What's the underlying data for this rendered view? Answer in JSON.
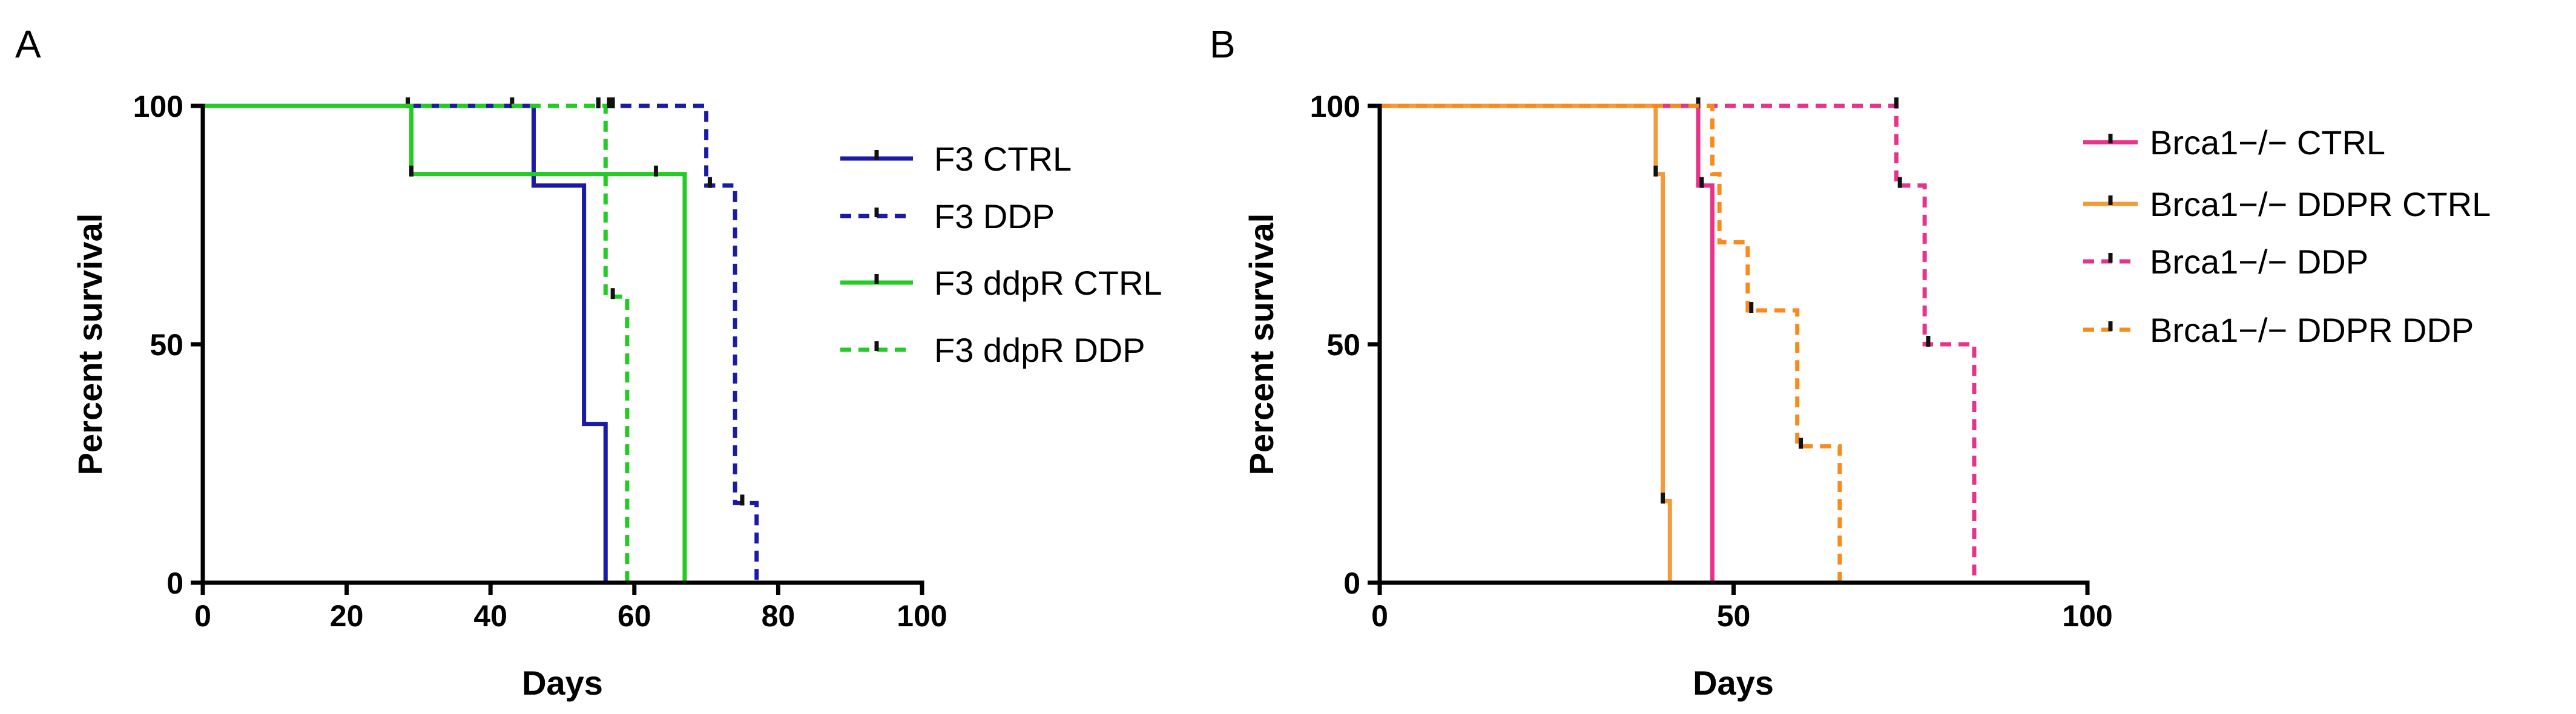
{
  "chart_data": [
    {
      "type": "line",
      "panel": "A",
      "xlabel": "Days",
      "ylabel": "Percent survival",
      "xlim": [
        0,
        100
      ],
      "ylim": [
        0,
        100
      ],
      "xticks": [
        0,
        20,
        40,
        60,
        80,
        100
      ],
      "yticks": [
        0,
        50,
        100
      ],
      "legend_position": "right",
      "series": [
        {
          "name": "F3 CTRL",
          "color": "#1a1aa6",
          "dashed": false,
          "steps": [
            [
              0,
              100
            ],
            [
              46,
              83.3
            ],
            [
              53,
              33.3
            ],
            [
              56,
              0
            ]
          ],
          "censored": [
            [
              28.5,
              100
            ],
            [
              43,
              100
            ],
            [
              55,
              100
            ]
          ]
        },
        {
          "name": "F3 DDP",
          "color": "#1a1aa6",
          "dashed": true,
          "steps": [
            [
              0,
              100
            ],
            [
              70,
              83.3
            ],
            [
              74,
              16.7
            ],
            [
              77,
              0
            ]
          ],
          "censored": [
            [
              57,
              100
            ],
            [
              70.5,
              83.3
            ],
            [
              75,
              16.7
            ]
          ]
        },
        {
          "name": "F3 ddpR CTRL",
          "color": "#22cc22",
          "dashed": false,
          "steps": [
            [
              0,
              100
            ],
            [
              29,
              85.7
            ],
            [
              67,
              0
            ]
          ],
          "censored": [
            [
              29,
              85.7
            ],
            [
              63,
              85.7
            ]
          ]
        },
        {
          "name": "F3 ddpR DDP",
          "color": "#22cc22",
          "dashed": true,
          "steps": [
            [
              0,
              100
            ],
            [
              56,
              60
            ],
            [
              59,
              0
            ]
          ],
          "censored": [
            [
              56.5,
              100
            ],
            [
              57,
              60
            ]
          ]
        }
      ]
    },
    {
      "type": "line",
      "panel": "B",
      "xlabel": "Days",
      "ylabel": "Percent survival",
      "xlim": [
        0,
        100
      ],
      "ylim": [
        0,
        100
      ],
      "xticks": [
        0,
        50,
        100
      ],
      "yticks": [
        0,
        50,
        100
      ],
      "legend_position": "right",
      "series": [
        {
          "name": "Brca1−/−  CTRL",
          "color": "#e8338a",
          "dashed": false,
          "steps": [
            [
              0,
              100
            ],
            [
              45,
              83.3
            ],
            [
              47,
              0
            ]
          ],
          "censored": [
            [
              45,
              100
            ],
            [
              45.5,
              83.3
            ]
          ]
        },
        {
          "name": "Brca1−/− DDPR CTRL",
          "color": "#f59a3a",
          "dashed": false,
          "steps": [
            [
              0,
              100
            ],
            [
              39,
              85.7
            ],
            [
              40,
              17.1
            ],
            [
              41,
              0
            ]
          ],
          "censored": [
            [
              39,
              85.7
            ],
            [
              40,
              17.1
            ]
          ]
        },
        {
          "name": "Brca1−/− DDP",
          "color": "#e8338a",
          "dashed": true,
          "steps": [
            [
              0,
              100
            ],
            [
              73,
              83.3
            ],
            [
              77,
              50
            ],
            [
              84,
              0
            ]
          ],
          "censored": [
            [
              73,
              100
            ],
            [
              73.5,
              83.3
            ],
            [
              77.5,
              50
            ]
          ]
        },
        {
          "name": "Brca1−/− DDPR DDP",
          "color": "#f98a1c",
          "dashed": true,
          "steps": [
            [
              0,
              100
            ],
            [
              47,
              85.7
            ],
            [
              48,
              71.4
            ],
            [
              52,
              57.1
            ],
            [
              59,
              28.6
            ],
            [
              65,
              0
            ]
          ],
          "censored": [
            [
              52.5,
              57.1
            ],
            [
              59.5,
              28.6
            ]
          ]
        }
      ]
    }
  ]
}
